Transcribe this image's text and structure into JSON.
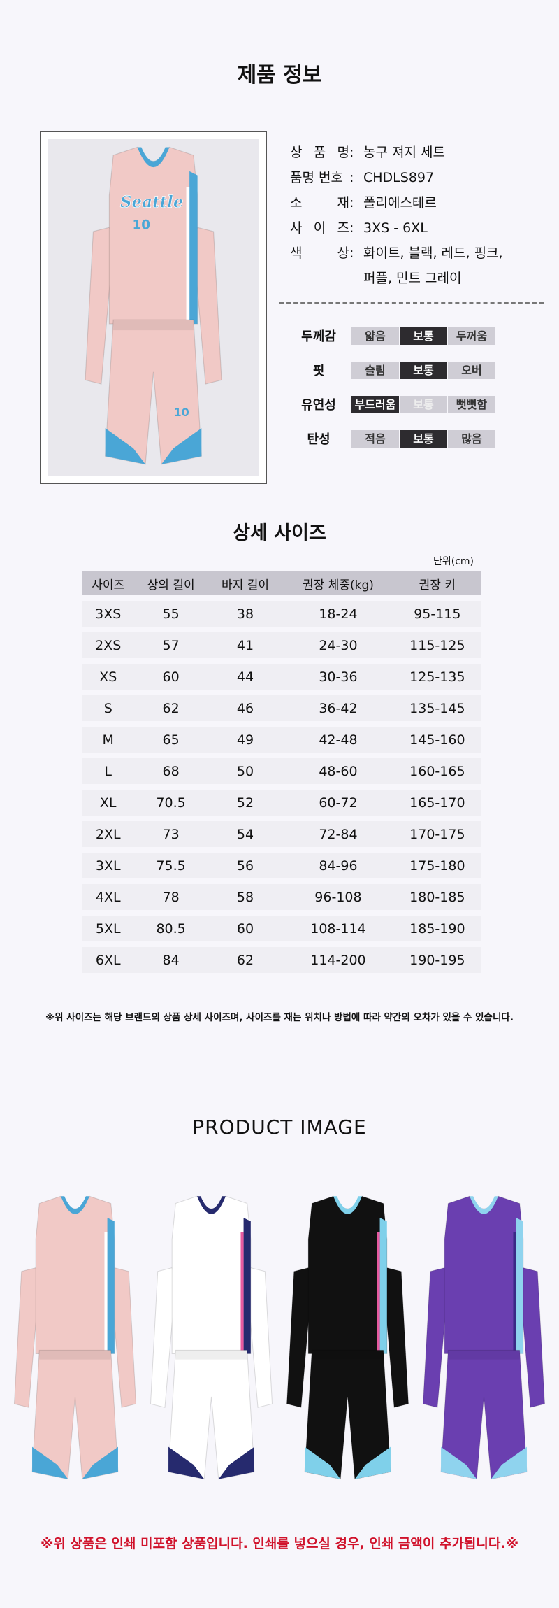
{
  "title": "제품 정보",
  "info": [
    {
      "k": [
        "상",
        "품",
        "명"
      ],
      "v": "농구 져지 세트"
    },
    {
      "k": [
        "품명 번호"
      ],
      "v": "CHDLS897"
    },
    {
      "k": [
        "소",
        "재"
      ],
      "v": "폴리에스테르"
    },
    {
      "k": [
        "사",
        "이",
        "즈"
      ],
      "v": "3XS - 6XL"
    },
    {
      "k": [
        "색",
        "상"
      ],
      "v": "화이트, 블랙, 레드, 핑크,"
    },
    {
      "k": [],
      "v": "퍼플, 민트 그레이"
    }
  ],
  "jersey_text": {
    "team": "Seattle",
    "number": "10"
  },
  "attributes": [
    {
      "label": "두께감",
      "options": [
        "얇음",
        "보통",
        "두꺼움"
      ],
      "selected": 1
    },
    {
      "label": "핏",
      "options": [
        "슬림",
        "보통",
        "오버"
      ],
      "selected": 1
    },
    {
      "label": "유연성",
      "options": [
        "부드러움",
        "보통",
        "뻣뻣함"
      ],
      "selected": 0
    },
    {
      "label": "탄성",
      "options": [
        "적음",
        "보통",
        "많음"
      ],
      "selected": 1
    }
  ],
  "size_title": "상세 사이즈",
  "unit": "단위(cm)",
  "size_table": {
    "headers": [
      "사이즈",
      "상의 길이",
      "바지 길이",
      "권장 체중(kg)",
      "권장 키"
    ],
    "rows": [
      [
        "3XS",
        "55",
        "38",
        "18-24",
        "95-115"
      ],
      [
        "2XS",
        "57",
        "41",
        "24-30",
        "115-125"
      ],
      [
        "XS",
        "60",
        "44",
        "30-36",
        "125-135"
      ],
      [
        "S",
        "62",
        "46",
        "36-42",
        "135-145"
      ],
      [
        "M",
        "65",
        "49",
        "42-48",
        "145-160"
      ],
      [
        "L",
        "68",
        "50",
        "48-60",
        "160-165"
      ],
      [
        "XL",
        "70.5",
        "52",
        "60-72",
        "165-170"
      ],
      [
        "2XL",
        "73",
        "54",
        "72-84",
        "170-175"
      ],
      [
        "3XL",
        "75.5",
        "56",
        "84-96",
        "175-180"
      ],
      [
        "4XL",
        "78",
        "58",
        "96-108",
        "180-185"
      ],
      [
        "5XL",
        "80.5",
        "60",
        "108-114",
        "185-190"
      ],
      [
        "6XL",
        "84",
        "62",
        "114-200",
        "190-195"
      ]
    ]
  },
  "size_note": "※위 사이즈는 해당 브랜드의 상품 상세 사이즈며, 사이즈를 재는 위치나 방법에 따라 약간의 오차가 있을 수 있습니다.",
  "product_image_title": "PRODUCT  IMAGE",
  "variants": [
    {
      "body": "#f1c9c6",
      "trim": "#4aa6d6",
      "accent": "#ffffff"
    },
    {
      "body": "#ffffff",
      "trim": "#262a6e",
      "accent": "#e75aa0"
    },
    {
      "body": "#111111",
      "trim": "#7fd0ea",
      "accent": "#e75aa0"
    },
    {
      "body": "#6a3fb0",
      "trim": "#8fd3ee",
      "accent": "#3a2a86"
    }
  ],
  "print_note": "※위 상품은 인쇄 미포함 상품입니다. 인쇄를 넣으실 경우, 인쇄 금액이 추가됩니다.※"
}
